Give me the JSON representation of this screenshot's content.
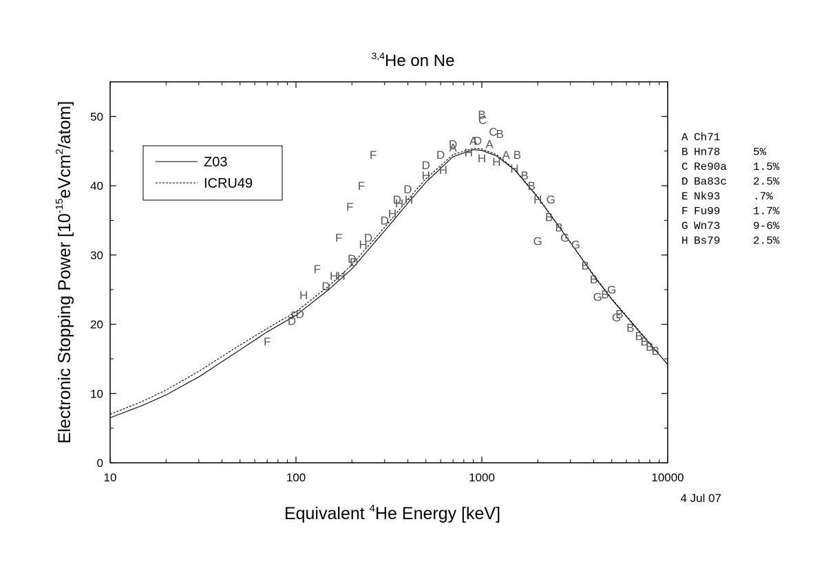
{
  "chart_data": {
    "type": "scatter",
    "title": {
      "sup": "3,4",
      "main": "He on Ne"
    },
    "xlabel": {
      "pre": "Equivalent ",
      "sup": "4",
      "post": "He Energy [keV]"
    },
    "ylabel": {
      "pre": "Electronic Stopping Power [10",
      "sup1": "-15",
      "mid": "eVcm",
      "sup2": "2",
      "post": "/atom]"
    },
    "x_scale": "log",
    "xlim": [
      10,
      10000
    ],
    "ylim": [
      0,
      55
    ],
    "x_ticks": [
      10,
      100,
      1000,
      10000
    ],
    "x_tick_labels": [
      "10",
      "100",
      "1000",
      "10000"
    ],
    "y_ticks": [
      0,
      10,
      20,
      30,
      40,
      50
    ],
    "y_tick_labels": [
      "0",
      "10",
      "20",
      "30",
      "40",
      "50"
    ],
    "date_label": "4 Jul 07",
    "legend": {
      "placement": "top-left",
      "entries": [
        {
          "label": "Z03",
          "style": "solid"
        },
        {
          "label": "ICRU49",
          "style": "dashed"
        }
      ]
    },
    "curves": [
      {
        "name": "Z03",
        "style": "solid",
        "x": [
          10,
          15,
          20,
          30,
          50,
          70,
          100,
          150,
          200,
          300,
          400,
          500,
          700,
          900,
          1000,
          1200,
          1500,
          2000,
          3000,
          4000,
          5000,
          7000,
          10000
        ],
        "y": [
          6.5,
          8.3,
          9.8,
          12.4,
          16.3,
          18.9,
          21.3,
          25.0,
          28.0,
          33.5,
          37.5,
          40.5,
          44.2,
          45.2,
          45.1,
          44.3,
          42.3,
          38.3,
          31.8,
          27.0,
          23.6,
          19.0,
          14.2
        ]
      },
      {
        "name": "ICRU49",
        "style": "dashed",
        "x": [
          10,
          15,
          20,
          30,
          50,
          70,
          100,
          150,
          200,
          300,
          400,
          500,
          700,
          900,
          1000,
          1200,
          1500,
          2000,
          3000,
          4000,
          5000,
          7000,
          10000
        ],
        "y": [
          7.0,
          8.9,
          10.5,
          13.2,
          17.0,
          19.4,
          21.8,
          25.5,
          28.6,
          34.0,
          38.0,
          41.0,
          44.5,
          45.4,
          45.3,
          44.5,
          42.4,
          38.4,
          31.8,
          27.1,
          23.7,
          19.1,
          14.2
        ]
      }
    ],
    "points": [
      {
        "l": "F",
        "x": 70,
        "y": 17.5
      },
      {
        "l": "F",
        "x": 98,
        "y": 21.3
      },
      {
        "l": "D",
        "x": 95,
        "y": 20.5
      },
      {
        "l": "D",
        "x": 105,
        "y": 21.5
      },
      {
        "l": "H",
        "x": 110,
        "y": 24.2
      },
      {
        "l": "F",
        "x": 130,
        "y": 28.0
      },
      {
        "l": "D",
        "x": 145,
        "y": 25.5
      },
      {
        "l": "H",
        "x": 160,
        "y": 27.0
      },
      {
        "l": "H",
        "x": 175,
        "y": 27.0
      },
      {
        "l": "F",
        "x": 170,
        "y": 32.5
      },
      {
        "l": "F",
        "x": 195,
        "y": 37.0
      },
      {
        "l": "D",
        "x": 200,
        "y": 29.5
      },
      {
        "l": "D",
        "x": 205,
        "y": 29.0
      },
      {
        "l": "F",
        "x": 225,
        "y": 40.0
      },
      {
        "l": "H",
        "x": 230,
        "y": 31.5
      },
      {
        "l": "D",
        "x": 245,
        "y": 32.5
      },
      {
        "l": "F",
        "x": 260,
        "y": 44.5
      },
      {
        "l": "D",
        "x": 300,
        "y": 35.0
      },
      {
        "l": "H",
        "x": 330,
        "y": 36.0
      },
      {
        "l": "D",
        "x": 350,
        "y": 38.0
      },
      {
        "l": "H",
        "x": 360,
        "y": 37.5
      },
      {
        "l": "D",
        "x": 400,
        "y": 39.5
      },
      {
        "l": "H",
        "x": 405,
        "y": 38.0
      },
      {
        "l": "D",
        "x": 500,
        "y": 43.0
      },
      {
        "l": "H",
        "x": 500,
        "y": 41.5
      },
      {
        "l": "D",
        "x": 600,
        "y": 44.5
      },
      {
        "l": "H",
        "x": 620,
        "y": 42.3
      },
      {
        "l": "A",
        "x": 700,
        "y": 45.5
      },
      {
        "l": "D",
        "x": 700,
        "y": 46.0
      },
      {
        "l": "H",
        "x": 850,
        "y": 44.8
      },
      {
        "l": "A",
        "x": 900,
        "y": 46.5
      },
      {
        "l": "D",
        "x": 950,
        "y": 46.5
      },
      {
        "l": "B",
        "x": 1000,
        "y": 50.3
      },
      {
        "l": "C",
        "x": 1010,
        "y": 49.5
      },
      {
        "l": "H",
        "x": 1000,
        "y": 44.0
      },
      {
        "l": "A",
        "x": 1100,
        "y": 46.0
      },
      {
        "l": "C",
        "x": 1150,
        "y": 47.8
      },
      {
        "l": "B",
        "x": 1250,
        "y": 47.5
      },
      {
        "l": "H",
        "x": 1200,
        "y": 43.5
      },
      {
        "l": "A",
        "x": 1350,
        "y": 44.5
      },
      {
        "l": "B",
        "x": 1550,
        "y": 44.5
      },
      {
        "l": "H",
        "x": 1500,
        "y": 42.5
      },
      {
        "l": "B",
        "x": 1700,
        "y": 41.5
      },
      {
        "l": "B",
        "x": 1850,
        "y": 40.0
      },
      {
        "l": "H",
        "x": 2000,
        "y": 38.0
      },
      {
        "l": "G",
        "x": 2350,
        "y": 38.0
      },
      {
        "l": "G",
        "x": 2000,
        "y": 32.0
      },
      {
        "l": "B",
        "x": 2300,
        "y": 35.5
      },
      {
        "l": "B",
        "x": 2600,
        "y": 34.0
      },
      {
        "l": "G",
        "x": 2800,
        "y": 32.5
      },
      {
        "l": "G",
        "x": 3200,
        "y": 31.5
      },
      {
        "l": "B",
        "x": 3600,
        "y": 28.5
      },
      {
        "l": "B",
        "x": 4000,
        "y": 26.5
      },
      {
        "l": "G",
        "x": 4200,
        "y": 24.0
      },
      {
        "l": "B",
        "x": 4600,
        "y": 24.3
      },
      {
        "l": "G",
        "x": 5000,
        "y": 25.0
      },
      {
        "l": "G",
        "x": 5300,
        "y": 21.0
      },
      {
        "l": "B",
        "x": 5500,
        "y": 21.5
      },
      {
        "l": "B",
        "x": 6300,
        "y": 19.5
      },
      {
        "l": "B",
        "x": 7000,
        "y": 18.3
      },
      {
        "l": "B",
        "x": 7500,
        "y": 17.5
      },
      {
        "l": "B",
        "x": 8000,
        "y": 16.8
      },
      {
        "l": "B",
        "x": 8600,
        "y": 16.2
      }
    ],
    "sources": [
      {
        "letter": "A",
        "ref": "Ch71",
        "err": ""
      },
      {
        "letter": "B",
        "ref": "Hn78",
        "err": "5%"
      },
      {
        "letter": "C",
        "ref": "Re90a",
        "err": "1.5%"
      },
      {
        "letter": "D",
        "ref": "Ba83c",
        "err": "2.5%"
      },
      {
        "letter": "E",
        "ref": "Nk93",
        "err": ".7%"
      },
      {
        "letter": "F",
        "ref": "Fu99",
        "err": "1.7%"
      },
      {
        "letter": "G",
        "ref": "Wn73",
        "err": "9-6%"
      },
      {
        "letter": "H",
        "ref": "Bs79",
        "err": "2.5%"
      }
    ]
  }
}
